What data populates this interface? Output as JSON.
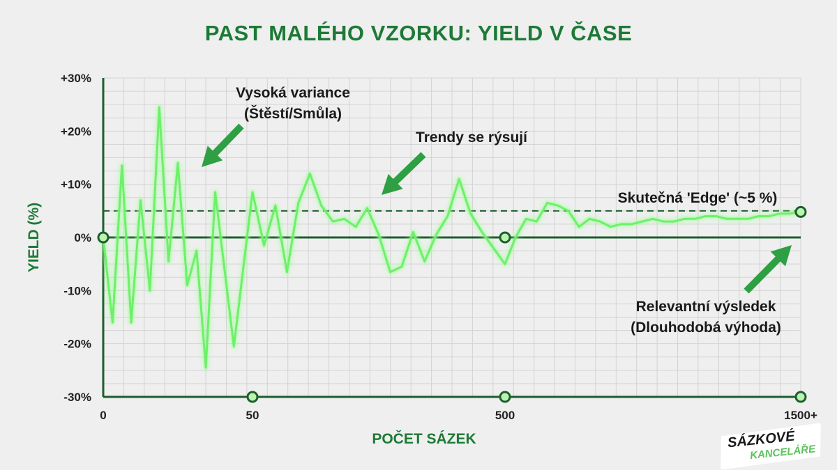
{
  "title": "PAST MALÉHO VZORKU: YIELD V ČASE",
  "colors": {
    "background": "#efefef",
    "title": "#1d7a36",
    "axis": "#1d5e2d",
    "series": "#6df06a",
    "series_glow": "#9cff95",
    "edge_line": "#1d5e2d",
    "arrow": "#2ea043",
    "marker_fill": "#b9f5b0"
  },
  "chart_data": {
    "type": "line",
    "title": "PAST MALÉHO VZORKU: YIELD V ČASE",
    "xlabel": "POČET SÁZEK",
    "ylabel": "YIELD (%)",
    "ylim": [
      -30,
      30
    ],
    "y_ticks": [
      "+30%",
      "+20%",
      "+10%",
      "0%",
      "-10%",
      "-20%",
      "-30%"
    ],
    "y_tick_values": [
      30,
      20,
      10,
      0,
      -10,
      -20,
      -30
    ],
    "x_ticks": [
      "0",
      "50",
      "500",
      "1500+"
    ],
    "x_scale": "nonlinear",
    "grid": true,
    "reference_line": {
      "label": "Skutečná 'Edge' (~5 %)",
      "y": 5,
      "style": "dashed"
    },
    "series": [
      {
        "values": [
          0,
          -16,
          13.5,
          -16,
          7,
          -10,
          24.5,
          -4.5,
          14,
          -9,
          -2.5,
          -24.5,
          8.5,
          -6,
          -20.5,
          -6,
          8.5,
          -1.5,
          6,
          -6.5,
          6.5,
          12,
          6,
          3,
          3.5,
          2,
          5.5,
          0.5,
          -6.5,
          -5.5,
          1,
          -4.5,
          0.5,
          4,
          11,
          4.5,
          1,
          -2,
          -5,
          0,
          3.5,
          3,
          6.5,
          6,
          5,
          2,
          3.5,
          3,
          2,
          2.5,
          2.5,
          3,
          3.5,
          3,
          3,
          3.5,
          3.5,
          4,
          4,
          3.5,
          3.5,
          3.5,
          4,
          4,
          4.5,
          4.5,
          4.8
        ]
      }
    ],
    "annotations": [
      {
        "text": [
          "Vysoká variance",
          "(Štěstí/Smůla)"
        ]
      },
      {
        "text": [
          "Trendy se rýsují"
        ]
      },
      {
        "text": [
          "Skutečná 'Edge' (~5 %)"
        ]
      },
      {
        "text": [
          "Relevantní výsledek",
          "(Dlouhodobá výhoda)"
        ]
      }
    ]
  },
  "brand": {
    "line1": "SÁZKOVÉ",
    "line2": "KANCELÁŘE"
  }
}
